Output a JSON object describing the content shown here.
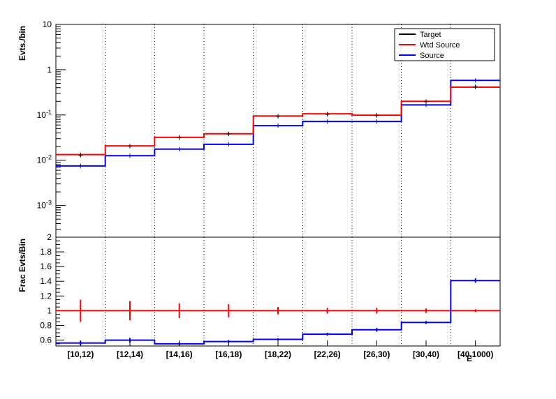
{
  "chart_data": [
    {
      "type": "line",
      "panel": "top",
      "ylabel": "Evts./bin",
      "yscale": "log",
      "ylim": [
        0.0002,
        10
      ],
      "yticks": [
        {
          "value": 0.001,
          "base": "10",
          "exp": "-3"
        },
        {
          "value": 0.01,
          "base": "10",
          "exp": "-2"
        },
        {
          "value": 0.1,
          "base": "10",
          "exp": "-1"
        },
        {
          "value": 1,
          "base": "1",
          "exp": ""
        },
        {
          "value": 10,
          "base": "10",
          "exp": ""
        }
      ],
      "categories": [
        "[10,12)",
        "[12,14)",
        "[14,16)",
        "[16,18)",
        "[18,22)",
        "[22,26)",
        "[26,30)",
        "[30,40)",
        "[40,1000)"
      ],
      "grid": "vertical dotted lines at bin edges",
      "legend_position": "top-right",
      "series": [
        {
          "name": "Target",
          "color": "#000000",
          "style": "points-with-error-bars",
          "values": [
            0.0128,
            0.0204,
            0.0315,
            0.038,
            0.093,
            0.103,
            0.097,
            0.197,
            0.42
          ]
        },
        {
          "name": "Wtd Source",
          "color": "#ff0000",
          "style": "step",
          "values": [
            0.0133,
            0.0208,
            0.032,
            0.0385,
            0.095,
            0.106,
            0.099,
            0.2,
            0.41
          ]
        },
        {
          "name": "Source",
          "color": "#0000ff",
          "style": "step",
          "values": [
            0.0075,
            0.0126,
            0.0176,
            0.0225,
            0.058,
            0.072,
            0.072,
            0.167,
            0.58
          ]
        }
      ]
    },
    {
      "type": "line",
      "panel": "bottom",
      "ylabel": "Frac Evts/Bin",
      "xlabel": "E",
      "ylim": [
        0.52,
        2.0
      ],
      "yticks": [
        "0.6",
        "0.8",
        "1",
        "1.2",
        "1.4",
        "1.6",
        "1.8",
        "2"
      ],
      "categories": [
        "[10,12)",
        "[12,14)",
        "[14,16)",
        "[16,18)",
        "[18,22)",
        "[22,26)",
        "[26,30)",
        "[30,40)",
        "[40,1000)"
      ],
      "series": [
        {
          "name": "Wtd Source",
          "color": "#ff0000",
          "values": [
            1.0,
            1.0,
            1.0,
            1.0,
            1.0,
            1.0,
            1.0,
            1.0,
            1.0
          ],
          "errors": [
            0.15,
            0.13,
            0.1,
            0.09,
            0.05,
            0.04,
            0.04,
            0.03,
            0.02
          ]
        },
        {
          "name": "Source",
          "color": "#0000ff",
          "values": [
            0.56,
            0.6,
            0.55,
            0.58,
            0.61,
            0.68,
            0.74,
            0.84,
            1.41
          ],
          "errors": [
            0.03,
            0.03,
            0.02,
            0.02,
            0.015,
            0.02,
            0.025,
            0.02,
            0.03
          ]
        }
      ]
    }
  ]
}
